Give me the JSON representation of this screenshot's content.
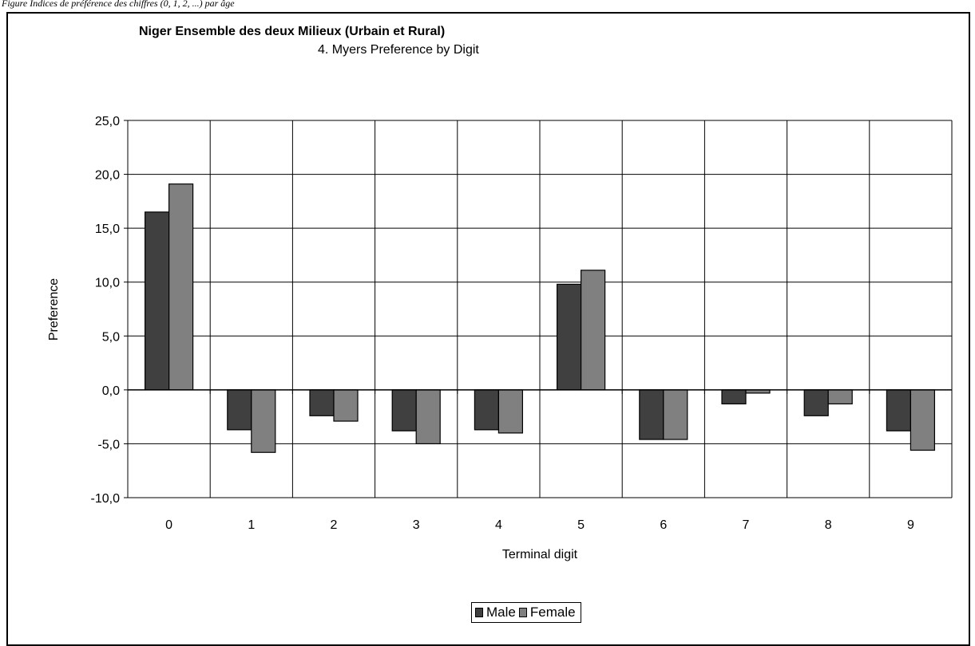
{
  "caption": "Figure  Indices de préférence des chiffres (0, 1, 2, ...) par âge",
  "chart_data": {
    "type": "bar",
    "title": "Niger Ensemble des deux Milieux (Urbain et Rural)",
    "subtitle": "4.  Myers Preference by Digit",
    "xlabel": "Terminal digit",
    "ylabel": "Preference",
    "ylim": [
      -10,
      25
    ],
    "yticks": [
      25,
      20,
      15,
      10,
      5,
      0,
      -5,
      -10
    ],
    "ytick_labels": [
      "25,0",
      "20,0",
      "15,0",
      "10,0",
      "5,0",
      "0,0",
      "-5,0",
      "-10,0"
    ],
    "categories": [
      "0",
      "1",
      "2",
      "3",
      "4",
      "5",
      "6",
      "7",
      "8",
      "9"
    ],
    "series": [
      {
        "name": "Male",
        "color": "#404040",
        "values": [
          16.5,
          -3.7,
          -2.4,
          -3.8,
          -3.7,
          9.8,
          -4.6,
          -1.3,
          -2.4,
          -3.8
        ]
      },
      {
        "name": "Female",
        "color": "#808080",
        "values": [
          19.1,
          -5.8,
          -2.9,
          -5.0,
          -4.0,
          11.1,
          -4.6,
          -0.3,
          -1.3,
          -5.6
        ]
      }
    ],
    "grid": true,
    "legend_position": "bottom-center"
  }
}
